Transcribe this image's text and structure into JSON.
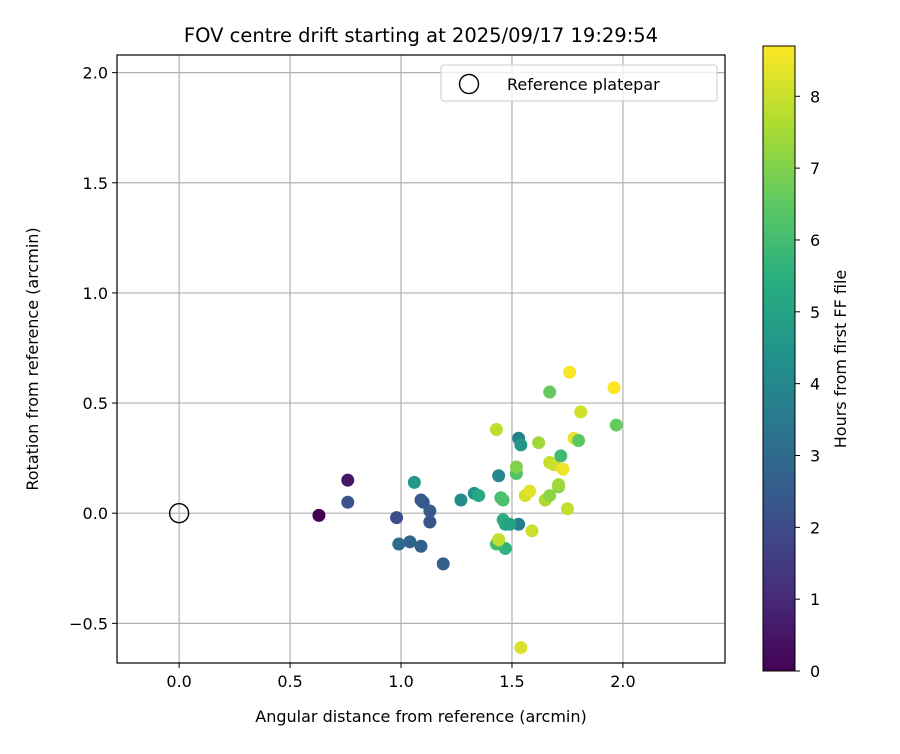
{
  "chart_data": {
    "type": "scatter",
    "title": "FOV centre drift starting at 2025/09/17 19:29:54",
    "xlabel": "Angular distance from reference (arcmin)",
    "ylabel": "Rotation from reference (arcmin)",
    "xlim": [
      -0.28,
      2.46
    ],
    "ylim": [
      -0.68,
      2.08
    ],
    "xticks": [
      {
        "value": 0.0,
        "label": "0.0"
      },
      {
        "value": 0.5,
        "label": "0.5"
      },
      {
        "value": 1.0,
        "label": "1.0"
      },
      {
        "value": 1.5,
        "label": "1.5"
      },
      {
        "value": 2.0,
        "label": "2.0"
      }
    ],
    "yticks": [
      {
        "value": -0.5,
        "label": "−0.5"
      },
      {
        "value": 0.0,
        "label": "0.0"
      },
      {
        "value": 0.5,
        "label": "0.5"
      },
      {
        "value": 1.0,
        "label": "1.0"
      },
      {
        "value": 1.5,
        "label": "1.5"
      },
      {
        "value": 2.0,
        "label": "2.0"
      }
    ],
    "grid": true,
    "legend": {
      "location": "upper right",
      "entries": [
        {
          "label": "Reference platepar",
          "marker": "open-circle"
        }
      ]
    },
    "reference_point": {
      "name": "Reference platepar",
      "x": 0.0,
      "y": 0.0
    },
    "colorbar": {
      "label": "Hours from first FF file",
      "colormap": "viridis",
      "min": 0,
      "max": 8.7,
      "ticks": [
        {
          "value": 0,
          "label": "0"
        },
        {
          "value": 1,
          "label": "1"
        },
        {
          "value": 2,
          "label": "2"
        },
        {
          "value": 3,
          "label": "3"
        },
        {
          "value": 4,
          "label": "4"
        },
        {
          "value": 5,
          "label": "5"
        },
        {
          "value": 6,
          "label": "6"
        },
        {
          "value": 7,
          "label": "7"
        },
        {
          "value": 8,
          "label": "8"
        }
      ]
    },
    "series": [
      {
        "name": "FOV centre drift",
        "points": [
          {
            "x": 0.63,
            "y": -0.01,
            "hours": 0.0
          },
          {
            "x": 0.76,
            "y": 0.15,
            "hours": 0.5
          },
          {
            "x": 0.76,
            "y": 0.05,
            "hours": 2.2
          },
          {
            "x": 0.98,
            "y": -0.02,
            "hours": 2.1
          },
          {
            "x": 1.09,
            "y": 0.06,
            "hours": 2.3
          },
          {
            "x": 1.1,
            "y": 0.05,
            "hours": 2.4
          },
          {
            "x": 1.13,
            "y": 0.01,
            "hours": 2.5
          },
          {
            "x": 1.13,
            "y": -0.04,
            "hours": 2.3
          },
          {
            "x": 1.19,
            "y": -0.23,
            "hours": 2.6
          },
          {
            "x": 0.99,
            "y": -0.14,
            "hours": 3.0
          },
          {
            "x": 1.04,
            "y": -0.13,
            "hours": 2.8
          },
          {
            "x": 1.09,
            "y": -0.15,
            "hours": 2.7
          },
          {
            "x": 1.06,
            "y": 0.14,
            "hours": 4.6
          },
          {
            "x": 1.27,
            "y": 0.06,
            "hours": 4.2
          },
          {
            "x": 1.33,
            "y": 0.09,
            "hours": 4.5
          },
          {
            "x": 1.35,
            "y": 0.08,
            "hours": 5.2
          },
          {
            "x": 1.44,
            "y": 0.17,
            "hours": 4.0
          },
          {
            "x": 1.53,
            "y": 0.34,
            "hours": 3.8
          },
          {
            "x": 1.54,
            "y": 0.31,
            "hours": 4.6
          },
          {
            "x": 1.53,
            "y": -0.05,
            "hours": 3.7
          },
          {
            "x": 1.46,
            "y": -0.03,
            "hours": 5.5
          },
          {
            "x": 1.47,
            "y": -0.16,
            "hours": 5.6
          },
          {
            "x": 1.47,
            "y": -0.05,
            "hours": 5.3
          },
          {
            "x": 1.49,
            "y": -0.05,
            "hours": 5.0
          },
          {
            "x": 1.43,
            "y": -0.14,
            "hours": 6.0
          },
          {
            "x": 1.45,
            "y": 0.07,
            "hours": 6.0
          },
          {
            "x": 1.46,
            "y": 0.06,
            "hours": 6.2
          },
          {
            "x": 1.52,
            "y": 0.18,
            "hours": 6.3
          },
          {
            "x": 1.52,
            "y": 0.21,
            "hours": 7.0
          },
          {
            "x": 1.44,
            "y": -0.12,
            "hours": 7.9
          },
          {
            "x": 1.43,
            "y": 0.38,
            "hours": 7.8
          },
          {
            "x": 1.54,
            "y": -0.61,
            "hours": 8.2
          },
          {
            "x": 1.56,
            "y": 0.08,
            "hours": 8.1
          },
          {
            "x": 1.58,
            "y": 0.1,
            "hours": 8.3
          },
          {
            "x": 1.59,
            "y": -0.08,
            "hours": 8.0
          },
          {
            "x": 1.62,
            "y": 0.32,
            "hours": 7.4
          },
          {
            "x": 1.65,
            "y": 0.06,
            "hours": 7.6
          },
          {
            "x": 1.67,
            "y": 0.55,
            "hours": 6.6
          },
          {
            "x": 1.67,
            "y": 0.08,
            "hours": 7.2
          },
          {
            "x": 1.67,
            "y": 0.23,
            "hours": 7.9
          },
          {
            "x": 1.69,
            "y": 0.22,
            "hours": 8.0
          },
          {
            "x": 1.71,
            "y": 0.12,
            "hours": 7.0
          },
          {
            "x": 1.71,
            "y": 0.13,
            "hours": 7.4
          },
          {
            "x": 1.72,
            "y": 0.26,
            "hours": 5.9
          },
          {
            "x": 1.73,
            "y": 0.2,
            "hours": 8.5
          },
          {
            "x": 1.75,
            "y": 0.02,
            "hours": 7.9
          },
          {
            "x": 1.76,
            "y": 0.64,
            "hours": 8.6
          },
          {
            "x": 1.78,
            "y": 0.34,
            "hours": 8.4
          },
          {
            "x": 1.8,
            "y": 0.33,
            "hours": 6.5
          },
          {
            "x": 1.81,
            "y": 0.46,
            "hours": 8.1
          },
          {
            "x": 1.96,
            "y": 0.57,
            "hours": 8.7
          },
          {
            "x": 1.97,
            "y": 0.4,
            "hours": 6.6
          }
        ]
      }
    ]
  }
}
